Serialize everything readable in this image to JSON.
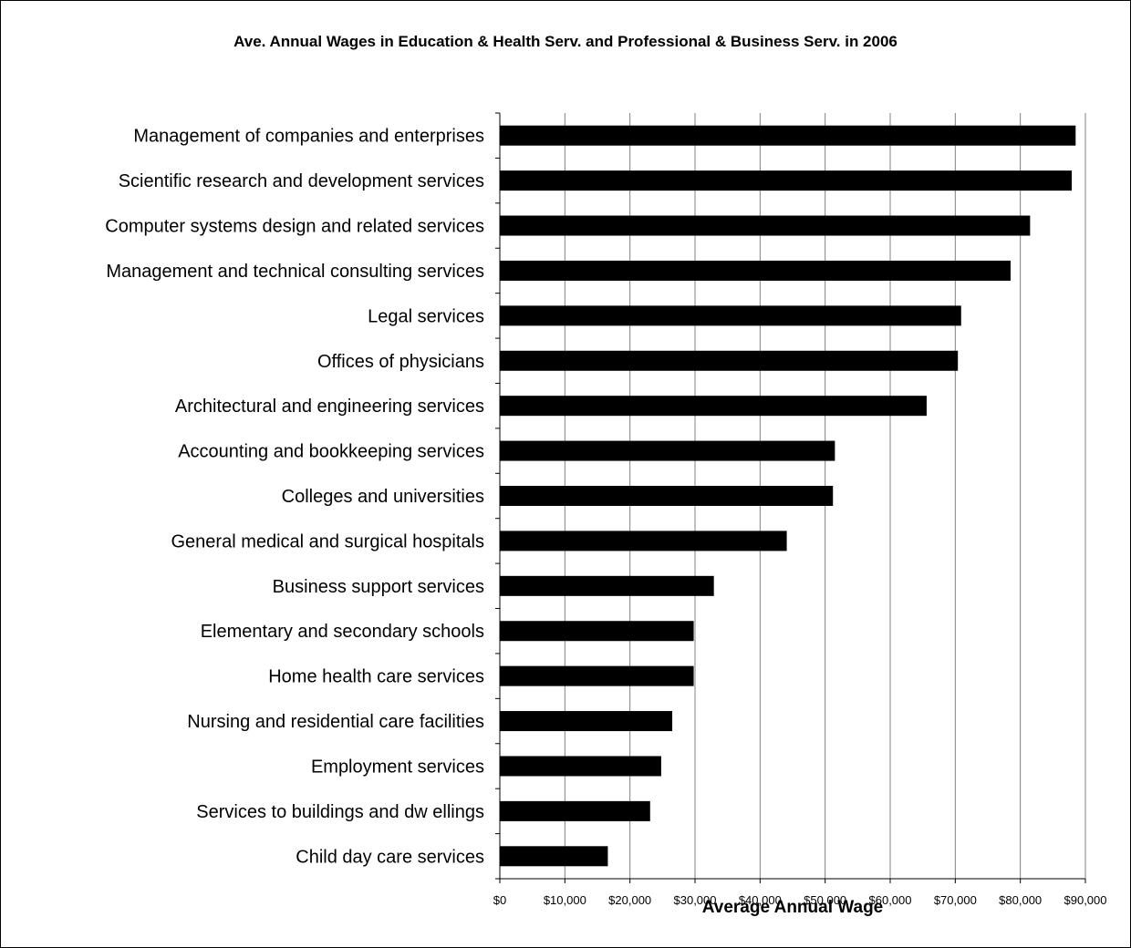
{
  "chart_data": {
    "type": "bar",
    "orientation": "horizontal",
    "title": "Ave. Annual Wages in Education & Health Serv. and Professional & Business Serv. in 2006",
    "xlabel": "Average Annual Wage",
    "ylabel": "",
    "xlim": [
      0,
      90000
    ],
    "ticks": [
      0,
      10000,
      20000,
      30000,
      40000,
      50000,
      60000,
      70000,
      80000,
      90000
    ],
    "tick_labels": [
      "$0",
      "$10,000",
      "$20,000",
      "$30,000",
      "$40,000",
      "$50,000",
      "$60,000",
      "$70,000",
      "$80,000",
      "$90,000"
    ],
    "grid": "vertical",
    "legend": "none",
    "bar_color": "#000000",
    "categories": [
      "Management of companies and enterprises",
      "Scientific research and development services",
      "Computer systems design and related services",
      "Management and technical consulting services",
      "Legal services",
      "Offices of physicians",
      "Architectural and engineering services",
      "Accounting and bookkeeping services",
      "Colleges and universities",
      "General medical and surgical hospitals",
      "Business support services",
      "Elementary and secondary schools",
      "Home health care services",
      "Nursing and residential care facilities",
      "Employment services",
      "Services to buildings and dw ellings",
      "Child day care services"
    ],
    "values": [
      88500,
      87900,
      81500,
      78500,
      70900,
      70400,
      65600,
      51500,
      51200,
      44100,
      32900,
      29800,
      29800,
      26500,
      24800,
      23100,
      16600
    ]
  }
}
